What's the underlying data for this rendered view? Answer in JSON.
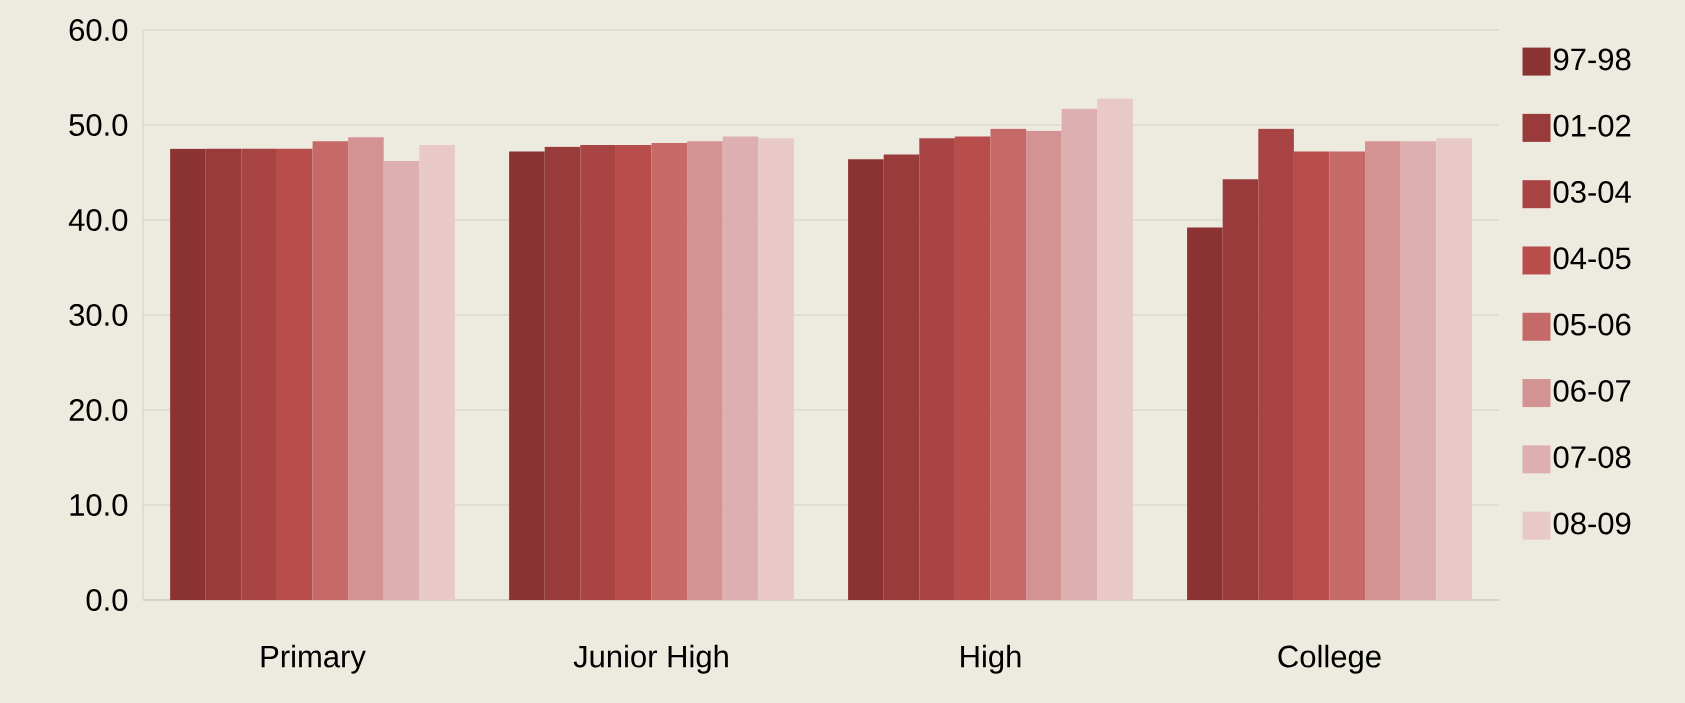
{
  "chart_data": {
    "type": "bar",
    "categories": [
      "Primary",
      "Junior High",
      "High",
      "College"
    ],
    "series": [
      {
        "name": "97-98",
        "color": "#8b3333",
        "values": [
          47.5,
          47.2,
          46.4,
          39.2
        ]
      },
      {
        "name": "01-02",
        "color": "#9a3b3b",
        "values": [
          47.5,
          47.7,
          46.9,
          44.3
        ]
      },
      {
        "name": "03-04",
        "color": "#a84444",
        "values": [
          47.5,
          47.9,
          48.6,
          49.6
        ]
      },
      {
        "name": "04-05",
        "color": "#b94d4b",
        "values": [
          47.5,
          47.9,
          48.8,
          47.2
        ]
      },
      {
        "name": "05-06",
        "color": "#c66a69",
        "values": [
          48.3,
          48.1,
          49.6,
          47.2
        ]
      },
      {
        "name": "06-07",
        "color": "#d39392",
        "values": [
          48.7,
          48.3,
          49.4,
          48.3
        ]
      },
      {
        "name": "07-08",
        "color": "#deafb0",
        "values": [
          46.2,
          48.8,
          51.7,
          48.3
        ]
      },
      {
        "name": "08-09",
        "color": "#e8c8c8",
        "values": [
          47.9,
          48.6,
          52.8,
          48.6
        ]
      }
    ],
    "ylim": [
      0,
      60
    ],
    "yticks": [
      {
        "value": 0,
        "label": "0.0"
      },
      {
        "value": 10,
        "label": "10.0"
      },
      {
        "value": 20,
        "label": "20.0"
      },
      {
        "value": 30,
        "label": "30.0"
      },
      {
        "value": 40,
        "label": "40.0"
      },
      {
        "value": 50,
        "label": "50.0"
      },
      {
        "value": 60,
        "label": "60.0"
      }
    ],
    "grid": "y",
    "legend": "right"
  }
}
